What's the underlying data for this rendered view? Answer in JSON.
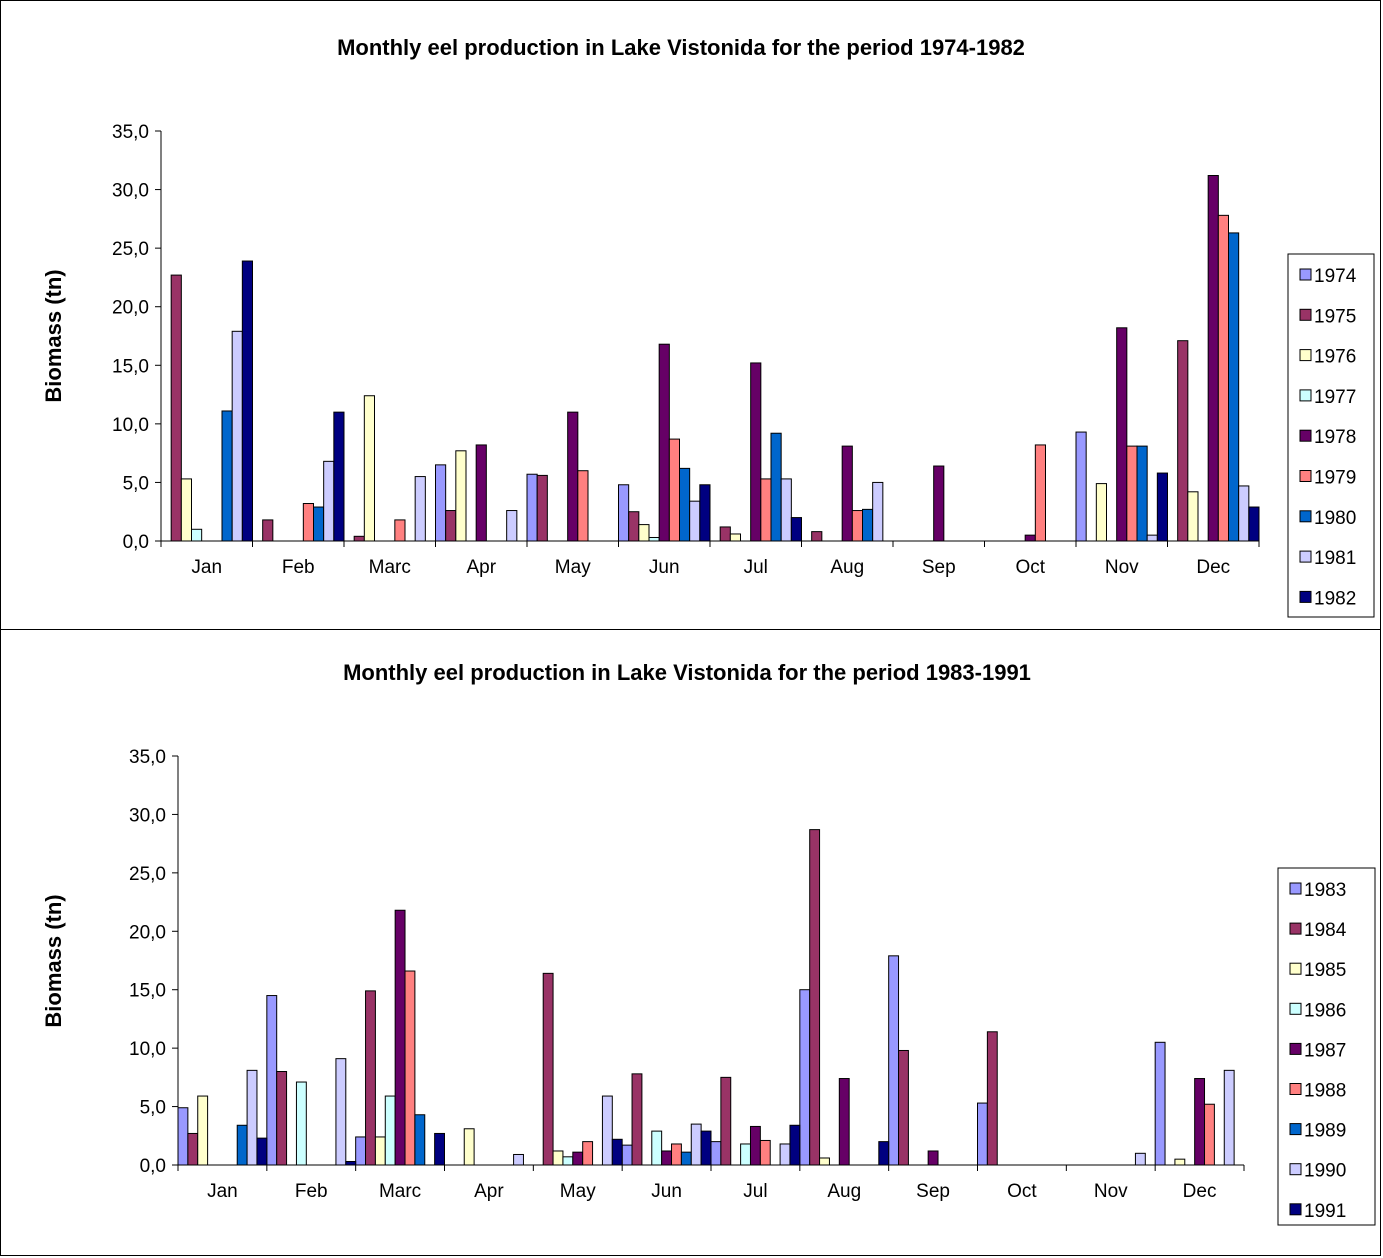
{
  "chart_data": [
    {
      "type": "bar",
      "title": "Monthly eel production in Lake Vistonida for the period 1974-1982",
      "ylabel": "Biomass (tn)",
      "xlabel": "",
      "ylim": [
        0,
        35
      ],
      "yticks": [
        "0,0",
        "5,0",
        "10,0",
        "15,0",
        "20,0",
        "25,0",
        "30,0",
        "35,0"
      ],
      "legend_position": "right",
      "grid": false,
      "categories": [
        "Jan",
        "Feb",
        "Marc",
        "Apr",
        "May",
        "Jun",
        "Jul",
        "Aug",
        "Sep",
        "Oct",
        "Nov",
        "Dec"
      ],
      "series": [
        {
          "name": "1974",
          "color": "#9999ff",
          "values": [
            0,
            0,
            0,
            6.5,
            5.7,
            4.8,
            0,
            0,
            0,
            0,
            9.3,
            0
          ]
        },
        {
          "name": "1975",
          "color": "#993366",
          "values": [
            22.7,
            1.8,
            0.4,
            2.6,
            5.6,
            2.5,
            1.2,
            0.8,
            0,
            0,
            0,
            17.1
          ]
        },
        {
          "name": "1976",
          "color": "#ffffcc",
          "values": [
            5.3,
            0,
            12.4,
            7.7,
            0,
            1.4,
            0.6,
            0,
            0,
            0,
            4.9,
            4.2
          ]
        },
        {
          "name": "1977",
          "color": "#ccffff",
          "values": [
            1,
            0,
            0,
            0,
            0,
            0.3,
            0,
            0,
            0,
            0,
            0,
            0
          ]
        },
        {
          "name": "1978",
          "color": "#660066",
          "values": [
            0,
            0,
            0,
            8.2,
            11,
            16.8,
            15.2,
            8.1,
            6.4,
            0.5,
            18.2,
            31.2
          ]
        },
        {
          "name": "1979",
          "color": "#ff8080",
          "values": [
            0,
            3.2,
            1.8,
            0,
            6,
            8.7,
            5.3,
            2.6,
            0,
            8.2,
            8.1,
            27.8
          ]
        },
        {
          "name": "1980",
          "color": "#0066cc",
          "values": [
            11.1,
            2.9,
            0,
            0,
            0,
            6.2,
            9.2,
            2.7,
            0,
            0,
            8.1,
            26.3
          ]
        },
        {
          "name": "1981",
          "color": "#ccccff",
          "values": [
            17.9,
            6.8,
            5.5,
            2.6,
            0,
            3.4,
            5.3,
            5,
            0,
            0,
            0.5,
            4.7
          ]
        },
        {
          "name": "1982",
          "color": "#000080",
          "values": [
            23.9,
            11,
            0,
            0,
            0,
            4.8,
            2,
            0,
            0,
            0,
            5.8,
            2.9
          ]
        }
      ]
    },
    {
      "type": "bar",
      "title": "Monthly eel production in Lake Vistonida for the period 1983-1991",
      "ylabel": "Biomass (tn)",
      "xlabel": "",
      "ylim": [
        0,
        35
      ],
      "yticks": [
        "0,0",
        "5,0",
        "10,0",
        "15,0",
        "20,0",
        "25,0",
        "30,0",
        "35,0"
      ],
      "legend_position": "right",
      "grid": false,
      "categories": [
        "Jan",
        "Feb",
        "Marc",
        "Apr",
        "May",
        "Jun",
        "Jul",
        "Aug",
        "Sep",
        "Oct",
        "Nov",
        "Dec"
      ],
      "series": [
        {
          "name": "1983",
          "color": "#9999ff",
          "values": [
            4.9,
            14.5,
            2.4,
            0,
            0,
            1.7,
            2,
            15,
            17.9,
            5.3,
            0,
            10.5
          ]
        },
        {
          "name": "1984",
          "color": "#993366",
          "values": [
            2.7,
            8,
            14.9,
            0,
            16.4,
            7.8,
            7.5,
            28.7,
            9.8,
            11.4,
            0,
            0
          ]
        },
        {
          "name": "1985",
          "color": "#ffffcc",
          "values": [
            5.9,
            0,
            2.4,
            3.1,
            1.2,
            0,
            0,
            0.6,
            0,
            0,
            0,
            0.5
          ]
        },
        {
          "name": "1986",
          "color": "#ccffff",
          "values": [
            0,
            7.1,
            5.9,
            0,
            0.7,
            2.9,
            1.8,
            0,
            0,
            0,
            0,
            0
          ]
        },
        {
          "name": "1987",
          "color": "#660066",
          "values": [
            0,
            0,
            21.8,
            0,
            1.1,
            1.2,
            3.3,
            7.4,
            1.2,
            0,
            0,
            7.4
          ]
        },
        {
          "name": "1988",
          "color": "#ff8080",
          "values": [
            0,
            0,
            16.6,
            0,
            2,
            1.8,
            2.1,
            0,
            0,
            0,
            0,
            5.2
          ]
        },
        {
          "name": "1989",
          "color": "#0066cc",
          "values": [
            3.4,
            0,
            4.3,
            0,
            0,
            1.1,
            0,
            0,
            0,
            0,
            0,
            0
          ]
        },
        {
          "name": "1990",
          "color": "#ccccff",
          "values": [
            8.1,
            9.1,
            0,
            0.9,
            5.9,
            3.5,
            1.8,
            0,
            0,
            0,
            1,
            8.1
          ]
        },
        {
          "name": "1991",
          "color": "#000080",
          "values": [
            2.3,
            0.3,
            2.7,
            0,
            2.2,
            2.9,
            3.4,
            2,
            0,
            0,
            0,
            0
          ]
        }
      ]
    }
  ]
}
